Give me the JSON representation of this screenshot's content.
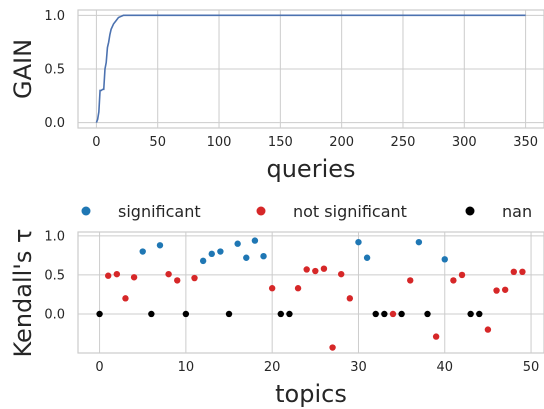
{
  "chart_data": [
    {
      "type": "line",
      "ylabel": "GAIN",
      "xlabel": "queries",
      "xlim": [
        -15,
        365
      ],
      "ylim": [
        -0.05,
        1.05
      ],
      "xticks": [
        "0",
        "50",
        "100",
        "150",
        "200",
        "250",
        "300",
        "350"
      ],
      "yticks": [
        "0.0",
        "0.5",
        "1.0"
      ],
      "grid": true,
      "color": "#4c72b0",
      "x": [
        0,
        1,
        2,
        3,
        4,
        5,
        6,
        7,
        8,
        9,
        10,
        11,
        12,
        14,
        16,
        18,
        20,
        22,
        25,
        30,
        40,
        60,
        100,
        200,
        300,
        350
      ],
      "y": [
        0.0,
        0.03,
        0.1,
        0.3,
        0.3,
        0.31,
        0.31,
        0.5,
        0.56,
        0.7,
        0.75,
        0.82,
        0.87,
        0.92,
        0.95,
        0.98,
        0.99,
        1.0,
        1.0,
        1.0,
        1.0,
        1.0,
        1.0,
        1.0,
        1.0,
        1.0
      ]
    },
    {
      "type": "scatter",
      "ylabel": "Kendall's τ",
      "xlabel": "topics",
      "xlim": [
        -2.5,
        51.5
      ],
      "ylim": [
        -0.5,
        1.05
      ],
      "xticks": [
        "0",
        "10",
        "20",
        "30",
        "40",
        "50"
      ],
      "yticks": [
        "0.0",
        "0.5",
        "1.0"
      ],
      "grid": true,
      "legend_position": "top",
      "series": [
        {
          "name": "significant",
          "color": "#1f77b4",
          "x": [
            5,
            7,
            12,
            13,
            14,
            16,
            17,
            18,
            19,
            30,
            31,
            37,
            40
          ],
          "y": [
            0.8,
            0.88,
            0.68,
            0.77,
            0.8,
            0.9,
            0.72,
            0.94,
            0.74,
            0.92,
            0.72,
            0.92,
            0.7
          ]
        },
        {
          "name": "not significant",
          "color": "#d62728",
          "x": [
            1,
            2,
            3,
            4,
            8,
            9,
            11,
            20,
            23,
            24,
            25,
            26,
            27,
            28,
            29,
            34,
            36,
            39,
            41,
            42,
            45,
            46,
            47,
            48,
            49
          ],
          "y": [
            0.49,
            0.51,
            0.2,
            0.47,
            0.51,
            0.43,
            0.46,
            0.33,
            0.33,
            0.57,
            0.55,
            0.58,
            -0.43,
            0.51,
            0.2,
            0.0,
            0.43,
            -0.29,
            0.43,
            0.5,
            -0.2,
            0.3,
            0.31,
            0.54,
            0.54
          ]
        },
        {
          "name": "nan",
          "color": "#000000",
          "x": [
            0,
            6,
            10,
            15,
            21,
            22,
            32,
            33,
            35,
            38,
            43,
            44
          ],
          "y": [
            0,
            0,
            0,
            0,
            0,
            0,
            0,
            0,
            0,
            0,
            0,
            0
          ]
        }
      ]
    }
  ]
}
